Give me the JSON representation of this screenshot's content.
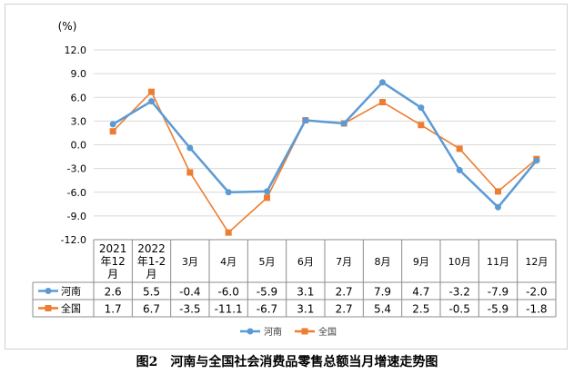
{
  "chart_data": {
    "type": "line",
    "unit": "(%)",
    "categories": [
      "2021年12月",
      "2022年1-2月",
      "3月",
      "4月",
      "5月",
      "6月",
      "7月",
      "8月",
      "9月",
      "10月",
      "11月",
      "12月"
    ],
    "category_lines": [
      [
        "2021",
        "年12",
        "月"
      ],
      [
        "2022",
        "年1-2",
        "月"
      ],
      [
        "3月"
      ],
      [
        "4月"
      ],
      [
        "5月"
      ],
      [
        "6月"
      ],
      [
        "7月"
      ],
      [
        "8月"
      ],
      [
        "9月"
      ],
      [
        "10月"
      ],
      [
        "11月"
      ],
      [
        "12月"
      ]
    ],
    "yticks": [
      "12.0",
      "9.0",
      "6.0",
      "3.0",
      "0.0",
      "-3.0",
      "-6.0",
      "-9.0",
      "-12.0"
    ],
    "ylim": [
      -12,
      12
    ],
    "series": [
      {
        "name": "河南",
        "color": "#5b9bd5",
        "marker": "circle",
        "values": [
          2.6,
          5.5,
          -0.4,
          -6.0,
          -5.9,
          3.1,
          2.7,
          7.9,
          4.7,
          -3.2,
          -7.9,
          -2.0
        ],
        "labels": [
          "2.6",
          "5.5",
          "-0.4",
          "-6.0",
          "-5.9",
          "3.1",
          "2.7",
          "7.9",
          "4.7",
          "-3.2",
          "-7.9",
          "-2.0"
        ]
      },
      {
        "name": "全国",
        "color": "#ed7d31",
        "marker": "square",
        "values": [
          1.7,
          6.7,
          -3.5,
          -11.1,
          -6.7,
          3.1,
          2.7,
          5.4,
          2.5,
          -0.5,
          -5.9,
          -1.8
        ],
        "labels": [
          "1.7",
          "6.7",
          "-3.5",
          "-11.1",
          "-6.7",
          "3.1",
          "2.7",
          "5.4",
          "2.5",
          "-0.5",
          "-5.9",
          "-1.8"
        ]
      }
    ],
    "grid": true,
    "legend": "bottom-center",
    "data_table": true
  },
  "caption": "图2　河南与全国社会消费品零售总额当月增速走势图"
}
